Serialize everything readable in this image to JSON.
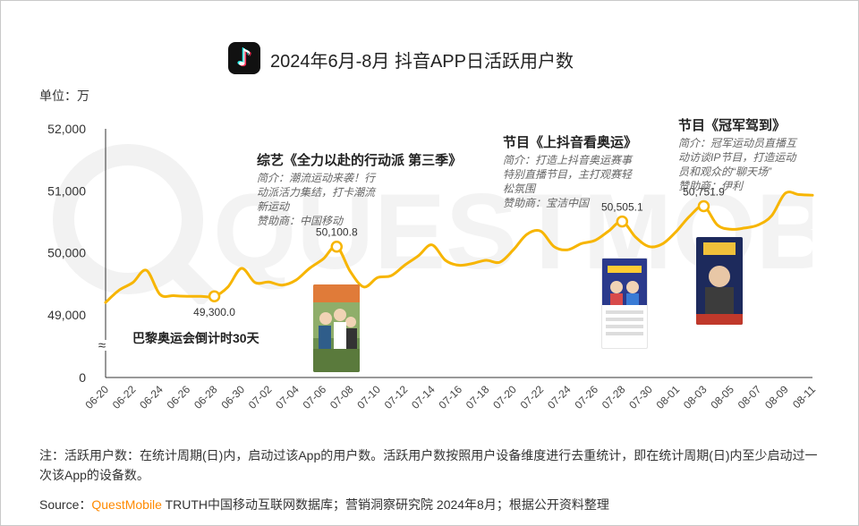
{
  "title": "2024年6月-8月 抖音APP日活跃用户数",
  "unit": "单位：万",
  "logo_icon": "tiktok-logo-icon",
  "watermark": "QUESTMOBILE",
  "colors": {
    "line": "#f7b500",
    "marker_fill": "#ffffff",
    "axis": "#333333",
    "brand": "#ff8a00"
  },
  "chart_data": {
    "type": "line",
    "title": "2024年6月-8月 抖音APP日活跃用户数",
    "ylabel": "单位：万",
    "xlabel": "",
    "y_ticks": [
      "52,000",
      "51,000",
      "50,000",
      "49,000",
      "0"
    ],
    "ylim": [
      48500,
      52000
    ],
    "axis_break": "≈",
    "x_ticks": [
      "06-20",
      "06-22",
      "06-24",
      "06-26",
      "06-28",
      "06-30",
      "07-02",
      "07-04",
      "07-06",
      "07-08",
      "07-10",
      "07-12",
      "07-14",
      "07-16",
      "07-18",
      "07-20",
      "07-22",
      "07-24",
      "07-26",
      "07-28",
      "07-30",
      "08-01",
      "08-03",
      "08-05",
      "08-07",
      "08-09",
      "08-11"
    ],
    "series": [
      {
        "name": "抖音APP日活跃用户数",
        "x": [
          "06-20",
          "06-21",
          "06-22",
          "06-23",
          "06-24",
          "06-25",
          "06-26",
          "06-27",
          "06-28",
          "06-29",
          "06-30",
          "07-01",
          "07-02",
          "07-03",
          "07-04",
          "07-05",
          "07-06",
          "07-07",
          "07-08",
          "07-09",
          "07-10",
          "07-11",
          "07-12",
          "07-13",
          "07-14",
          "07-15",
          "07-16",
          "07-17",
          "07-18",
          "07-19",
          "07-20",
          "07-21",
          "07-22",
          "07-23",
          "07-24",
          "07-25",
          "07-26",
          "07-27",
          "07-28",
          "07-29",
          "07-30",
          "07-31",
          "08-01",
          "08-02",
          "08-03",
          "08-04",
          "08-05",
          "08-06",
          "08-07",
          "08-08",
          "08-09",
          "08-10",
          "08-11"
        ],
        "values": [
          49200,
          49400,
          49520,
          49720,
          49330,
          49310,
          49300,
          49300,
          49300,
          49450,
          49750,
          49520,
          49530,
          49480,
          49560,
          49750,
          49900,
          50100,
          49700,
          49450,
          49600,
          49630,
          49800,
          49950,
          50130,
          49880,
          49800,
          49830,
          49880,
          49850,
          50050,
          50300,
          50350,
          50100,
          50050,
          50150,
          50200,
          50350,
          50505,
          50250,
          50100,
          50150,
          50350,
          50600,
          50752,
          50450,
          50380,
          50400,
          50450,
          50600,
          50960,
          50940,
          50930
        ]
      }
    ],
    "data_labels": [
      {
        "x": "06-28",
        "value": 49300,
        "label": "49,300.0"
      },
      {
        "x": "07-07",
        "value": 50100,
        "label": "50,100.8"
      },
      {
        "x": "07-28",
        "value": 50505,
        "label": "50,505.1"
      },
      {
        "x": "08-03",
        "value": 50752,
        "label": "50,751.9"
      }
    ],
    "annotations": {
      "countdown": "巴黎奥运会倒计时30天",
      "variety": {
        "title": "综艺《全力以赴的行动派 第三季》",
        "lines": [
          "简介：潮流运动来袭！行",
          "动派活力集结，打卡潮流",
          "新运动",
          "赞助商：中国移动"
        ]
      },
      "program1": {
        "title": "节目《上抖音看奥运》",
        "lines": [
          "简介：打造上抖音奥运赛事",
          "特别直播节目，主打观赛轻",
          "松氛围",
          "赞助商：宝洁中国"
        ]
      },
      "program2": {
        "title": "节目《冠军驾到》",
        "lines": [
          "简介：冠军运动员直播互",
          "动访谈IP节目，打造运动",
          "员和观众的“聊天场”",
          "赞助商：伊利"
        ]
      }
    }
  },
  "note": "注：活跃用户数：在统计周期(日)内，启动过该App的用户数。活跃用户数按照用户设备维度进行去重统计，即在统计周期(日)内至少启动过一次该App的设备数。",
  "source": {
    "prefix": "Source：",
    "brand": "QuestMobile",
    "rest": " TRUTH中国移动互联网数据库；营销洞察研究院 2024年8月；根据公开资料整理"
  }
}
